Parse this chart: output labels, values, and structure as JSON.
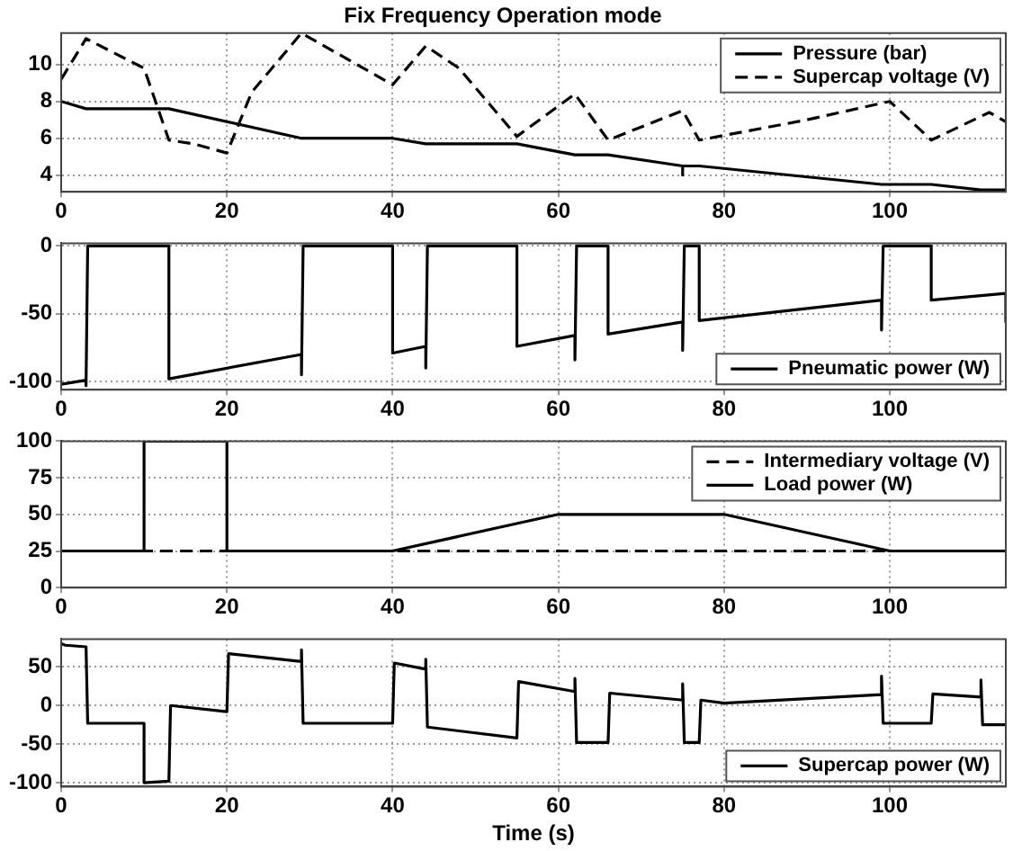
{
  "chart_data": [
    {
      "type": "line",
      "title": "Fix Frequency Operation mode",
      "xlim": [
        0,
        114
      ],
      "xticks": [
        0,
        20,
        40,
        60,
        80,
        100
      ],
      "ylim": [
        3.1,
        11.7
      ],
      "yticks": [
        4,
        6,
        8,
        10
      ],
      "grid": true,
      "legend": "top right",
      "series": [
        {
          "name": "Pressure (bar)",
          "color": "#000000",
          "line_style": "solid",
          "x": [
            0,
            3,
            13,
            29,
            40,
            44,
            55,
            62,
            66,
            75,
            75,
            75,
            77,
            99,
            105,
            111,
            114
          ],
          "values": [
            8,
            7.6,
            7.6,
            6,
            6,
            5.7,
            5.7,
            5.1,
            5.1,
            4.5,
            4.0,
            4.5,
            4.5,
            3.5,
            3.5,
            3.2,
            3.2
          ]
        },
        {
          "name": "Supercap voltage (V)",
          "color": "#000000",
          "line_style": "dashed",
          "x": [
            0,
            3,
            10,
            13,
            16,
            20,
            23,
            29,
            40,
            44,
            48,
            55,
            62,
            66,
            75,
            77,
            90,
            100,
            105,
            112,
            114
          ],
          "values": [
            9.2,
            11.4,
            9.8,
            5.9,
            5.7,
            5.2,
            8.5,
            11.7,
            8.9,
            11,
            9.8,
            6.1,
            8.4,
            5.9,
            7.5,
            5.9,
            7,
            8,
            5.9,
            7.4,
            6.9
          ]
        }
      ]
    },
    {
      "type": "line",
      "xlim": [
        0,
        114
      ],
      "xticks": [
        0,
        20,
        40,
        60,
        80,
        100
      ],
      "ylim": [
        -106,
        2
      ],
      "yticks": [
        -100,
        -50,
        0
      ],
      "grid": true,
      "legend": "bottom right",
      "series": [
        {
          "name": "Pneumatic power (W)",
          "color": "#000000",
          "line_style": "solid",
          "x": [
            0,
            3,
            3,
            3.2,
            13,
            13,
            29,
            29,
            29.2,
            40,
            40,
            44,
            44,
            44.2,
            55,
            55,
            62,
            62,
            62.2,
            66,
            66,
            75,
            75,
            75.2,
            77,
            77,
            99,
            99,
            99.2,
            105,
            105,
            114,
            114
          ],
          "values": [
            -102,
            -99,
            -103,
            0,
            0,
            -98,
            -80,
            -95,
            0,
            0,
            -79,
            -74,
            -90,
            0,
            0,
            -74,
            -66,
            -84,
            0,
            0,
            -65,
            -56,
            -77,
            0,
            0,
            -55,
            -40,
            -62,
            0,
            0,
            -40,
            -35,
            -56
          ]
        }
      ]
    },
    {
      "type": "line",
      "xlim": [
        0,
        114
      ],
      "xticks": [
        0,
        20,
        40,
        60,
        80,
        100
      ],
      "ylim": [
        0,
        100
      ],
      "yticks": [
        0,
        25,
        50,
        75,
        100
      ],
      "grid": true,
      "legend": "top right",
      "series": [
        {
          "name": "Intermediary voltage (V)",
          "color": "#000000",
          "line_style": "dashed",
          "x": [
            0,
            114
          ],
          "values": [
            25,
            25
          ]
        },
        {
          "name": "Load power (W)",
          "color": "#000000",
          "line_style": "solid",
          "x": [
            0,
            10,
            10,
            20,
            20,
            40,
            60,
            80,
            100,
            114
          ],
          "values": [
            25,
            25,
            100,
            100,
            25,
            25,
            50,
            50,
            25,
            25
          ]
        }
      ]
    },
    {
      "type": "line",
      "xlabel": "Time (s)",
      "xlim": [
        0,
        114
      ],
      "xticks": [
        0,
        20,
        40,
        60,
        80,
        100
      ],
      "ylim": [
        -105,
        86
      ],
      "yticks": [
        -100,
        -50,
        0,
        50
      ],
      "grid": true,
      "legend": "bottom right",
      "series": [
        {
          "name": "Supercap power (W)",
          "color": "#000000",
          "line_style": "solid",
          "x": [
            0,
            0.5,
            3,
            3.2,
            10,
            10,
            13,
            13.2,
            20,
            20.2,
            29,
            29,
            29.2,
            40,
            40.2,
            44,
            44,
            44.2,
            55,
            55.2,
            62,
            62,
            62.2,
            66,
            66.2,
            75,
            75,
            75.2,
            77,
            77.2,
            80,
            99,
            99,
            99.2,
            105,
            105.2,
            111,
            111,
            111.2,
            114
          ],
          "values": [
            80,
            78,
            76,
            -23,
            -23,
            -100,
            -98,
            0,
            -8,
            67,
            57,
            72,
            -23,
            -23,
            55,
            47,
            60,
            -28,
            -42,
            31,
            18,
            35,
            -48,
            -48,
            16,
            7,
            28,
            -48,
            -48,
            7,
            3,
            14,
            38,
            -23,
            -23,
            15,
            11,
            33,
            -25,
            -25
          ]
        }
      ]
    }
  ]
}
